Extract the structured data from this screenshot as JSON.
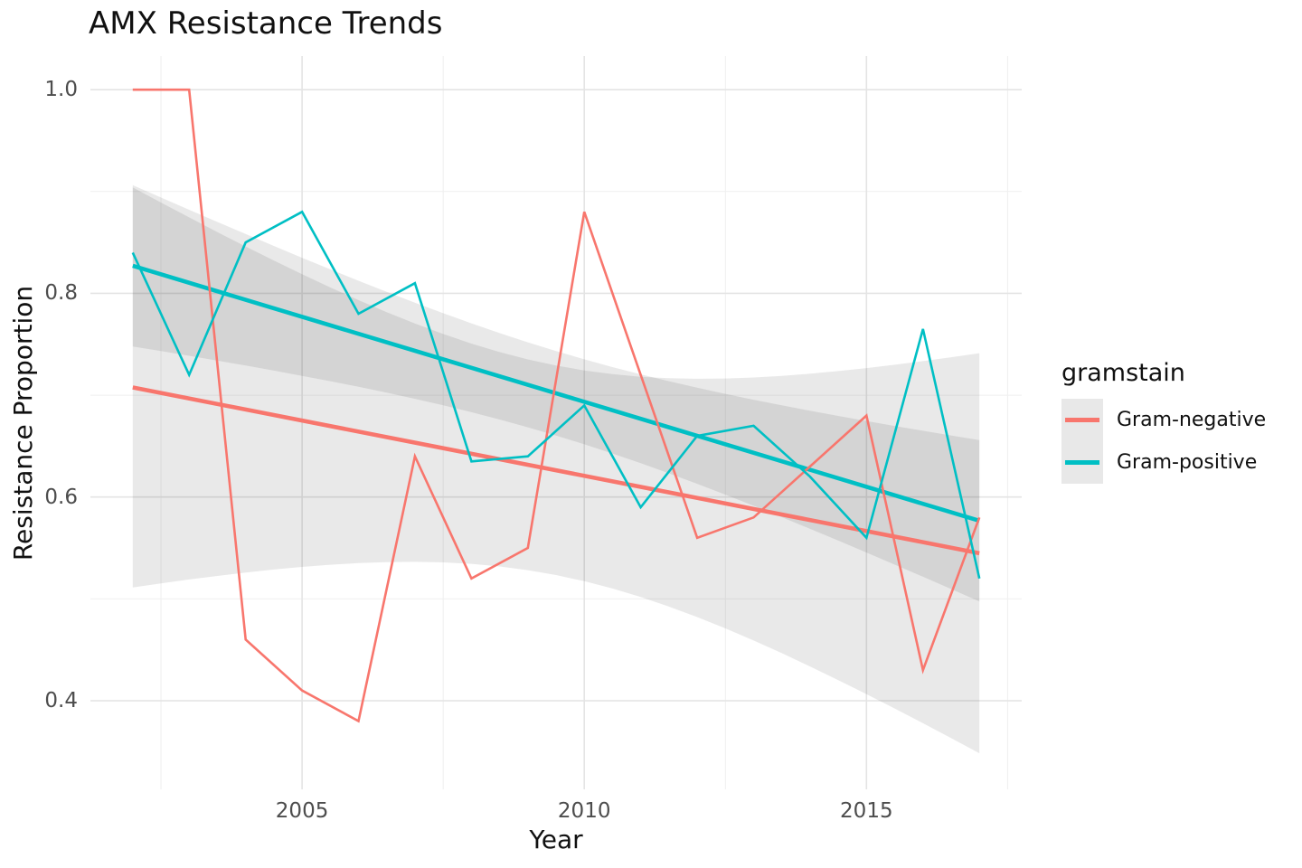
{
  "title": "AMX Resistance Trends",
  "legend": {
    "title": "gramstain",
    "items": [
      {
        "label": "Gram-negative",
        "color": "#F8766D"
      },
      {
        "label": "Gram-positive",
        "color": "#00BFC4"
      }
    ]
  },
  "chart_data": {
    "type": "line",
    "title": "AMX Resistance Trends",
    "xlabel": "Year",
    "ylabel": "Resistance Proportion",
    "x": [
      2002,
      2003,
      2004,
      2005,
      2006,
      2007,
      2008,
      2009,
      2010,
      2011,
      2012,
      2013,
      2014,
      2015,
      2016,
      2017
    ],
    "series": [
      {
        "name": "Gram-negative",
        "color": "#F8766D",
        "values": [
          1.0,
          1.0,
          0.46,
          0.41,
          0.38,
          0.64,
          0.52,
          0.55,
          0.88,
          0.72,
          0.56,
          0.58,
          0.63,
          0.68,
          0.43,
          0.58
        ]
      },
      {
        "name": "Gram-positive",
        "color": "#00BFC4",
        "values": [
          0.84,
          0.72,
          0.85,
          0.88,
          0.78,
          0.81,
          0.635,
          0.64,
          0.69,
          0.59,
          0.66,
          0.67,
          0.62,
          0.56,
          0.765,
          0.52
        ]
      }
    ],
    "smooth": {
      "method": "lm",
      "ci_band": true,
      "band_fill": "rgba(0,0,0,0.085)"
    },
    "xlim": [
      2001.25,
      2017.75
    ],
    "ylim": [
      0.313,
      1.033
    ],
    "xticks": {
      "major": [
        2005,
        2010,
        2015
      ],
      "labels": [
        "2005",
        "2010",
        "2015"
      ],
      "minor": [
        2002.5,
        2007.5,
        2012.5,
        2017.5
      ]
    },
    "yticks": {
      "major": [
        1.0,
        0.8,
        0.6,
        0.4
      ],
      "labels": [
        "1.0",
        "0.8",
        "0.6",
        "0.4"
      ],
      "minor": [
        0.9,
        0.7,
        0.5
      ]
    },
    "grid": {
      "major_color": "#e4e4e4",
      "minor_color": "#efefef"
    },
    "legend_position": "right"
  }
}
